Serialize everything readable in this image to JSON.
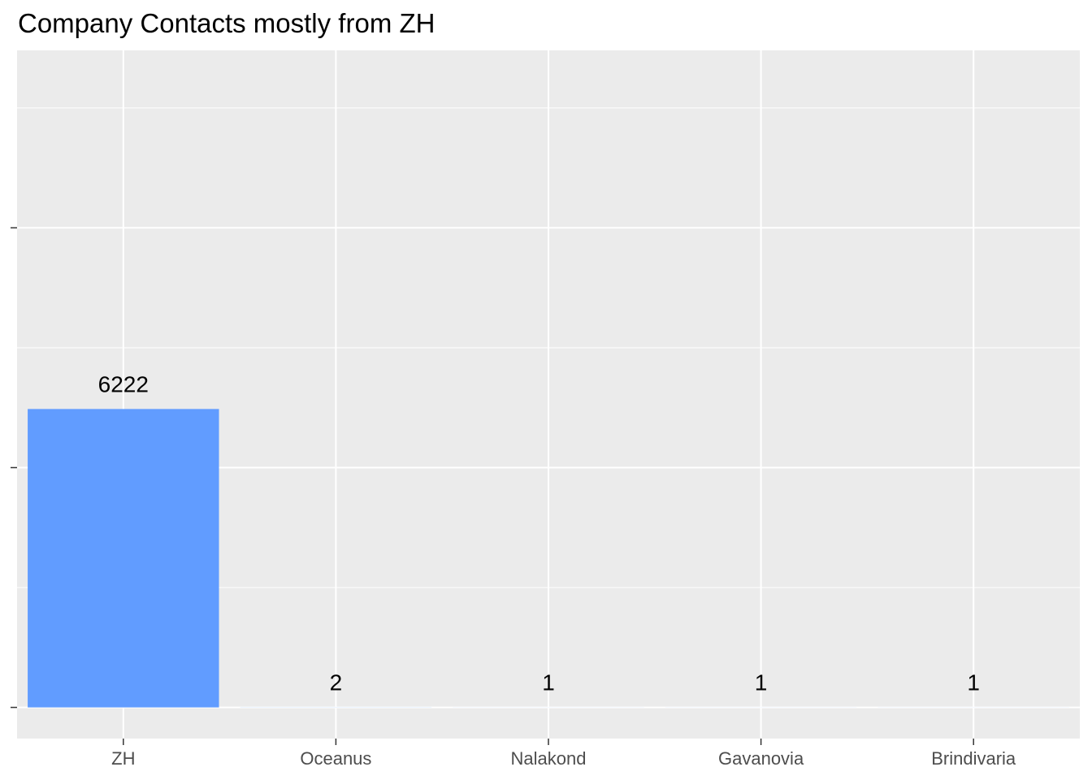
{
  "chart_data": {
    "type": "bar",
    "title": "Company Contacts mostly from ZH",
    "xlabel": "",
    "ylabel": "",
    "categories": [
      "ZH",
      "Oceanus",
      "Nalakond",
      "Gavanovia",
      "Brindivaria"
    ],
    "values": [
      6222,
      2,
      1,
      1,
      1
    ],
    "data_labels": [
      "6222",
      "2",
      "1",
      "1",
      "1"
    ],
    "ylim": [
      -650,
      13700
    ],
    "y_ticks": [
      0,
      5000,
      10000
    ],
    "y_tick_labels_shown": false,
    "grid": true,
    "legend": "none",
    "colors": {
      "bar": "#619CFF",
      "panel_background": "#EBEBEB",
      "gridline": "#FFFFFF",
      "axis_tick": "#333333",
      "tick_label": "#4D4D4D"
    }
  }
}
